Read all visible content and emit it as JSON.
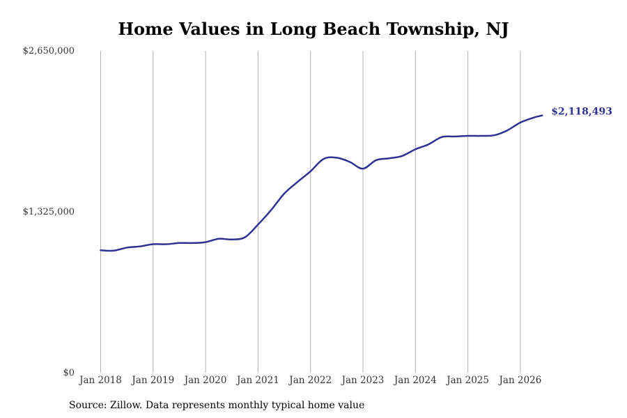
{
  "chart_data": {
    "type": "line",
    "title": "Home Values in Long Beach Township, NJ",
    "xlabel": "",
    "ylabel": "",
    "ylim": [
      0,
      2650000
    ],
    "y_ticks": [
      "$0",
      "$1,325,000",
      "$2,650,000"
    ],
    "x_ticks": [
      "Jan 2018",
      "Jan 2019",
      "Jan 2020",
      "Jan 2021",
      "Jan 2022",
      "Jan 2023",
      "Jan 2024",
      "Jan 2025",
      "Jan 2026"
    ],
    "grid": "vertical",
    "end_label": "$2,118,493",
    "series": [
      {
        "color": "#2e3192",
        "x": [
          "2018-01",
          "2018-04",
          "2018-07",
          "2018-10",
          "2019-01",
          "2019-04",
          "2019-07",
          "2019-10",
          "2020-01",
          "2020-04",
          "2020-07",
          "2020-10",
          "2021-01",
          "2021-04",
          "2021-07",
          "2021-10",
          "2022-01",
          "2022-04",
          "2022-07",
          "2022-10",
          "2023-01",
          "2023-04",
          "2023-07",
          "2023-10",
          "2024-01",
          "2024-04",
          "2024-07",
          "2024-10",
          "2025-01",
          "2025-04",
          "2025-07",
          "2025-10",
          "2026-01",
          "2026-04",
          "2026-06"
        ],
        "values": [
          1008000,
          1005000,
          1030000,
          1040000,
          1058000,
          1058000,
          1068000,
          1068000,
          1075000,
          1103000,
          1097000,
          1115000,
          1220000,
          1340000,
          1475000,
          1570000,
          1658000,
          1760000,
          1770000,
          1735000,
          1680000,
          1750000,
          1765000,
          1785000,
          1840000,
          1880000,
          1940000,
          1945000,
          1950000,
          1950000,
          1955000,
          1995000,
          2060000,
          2100000,
          2118493
        ]
      }
    ]
  },
  "source_note": "Source: Zillow. Data represents monthly typical home value"
}
